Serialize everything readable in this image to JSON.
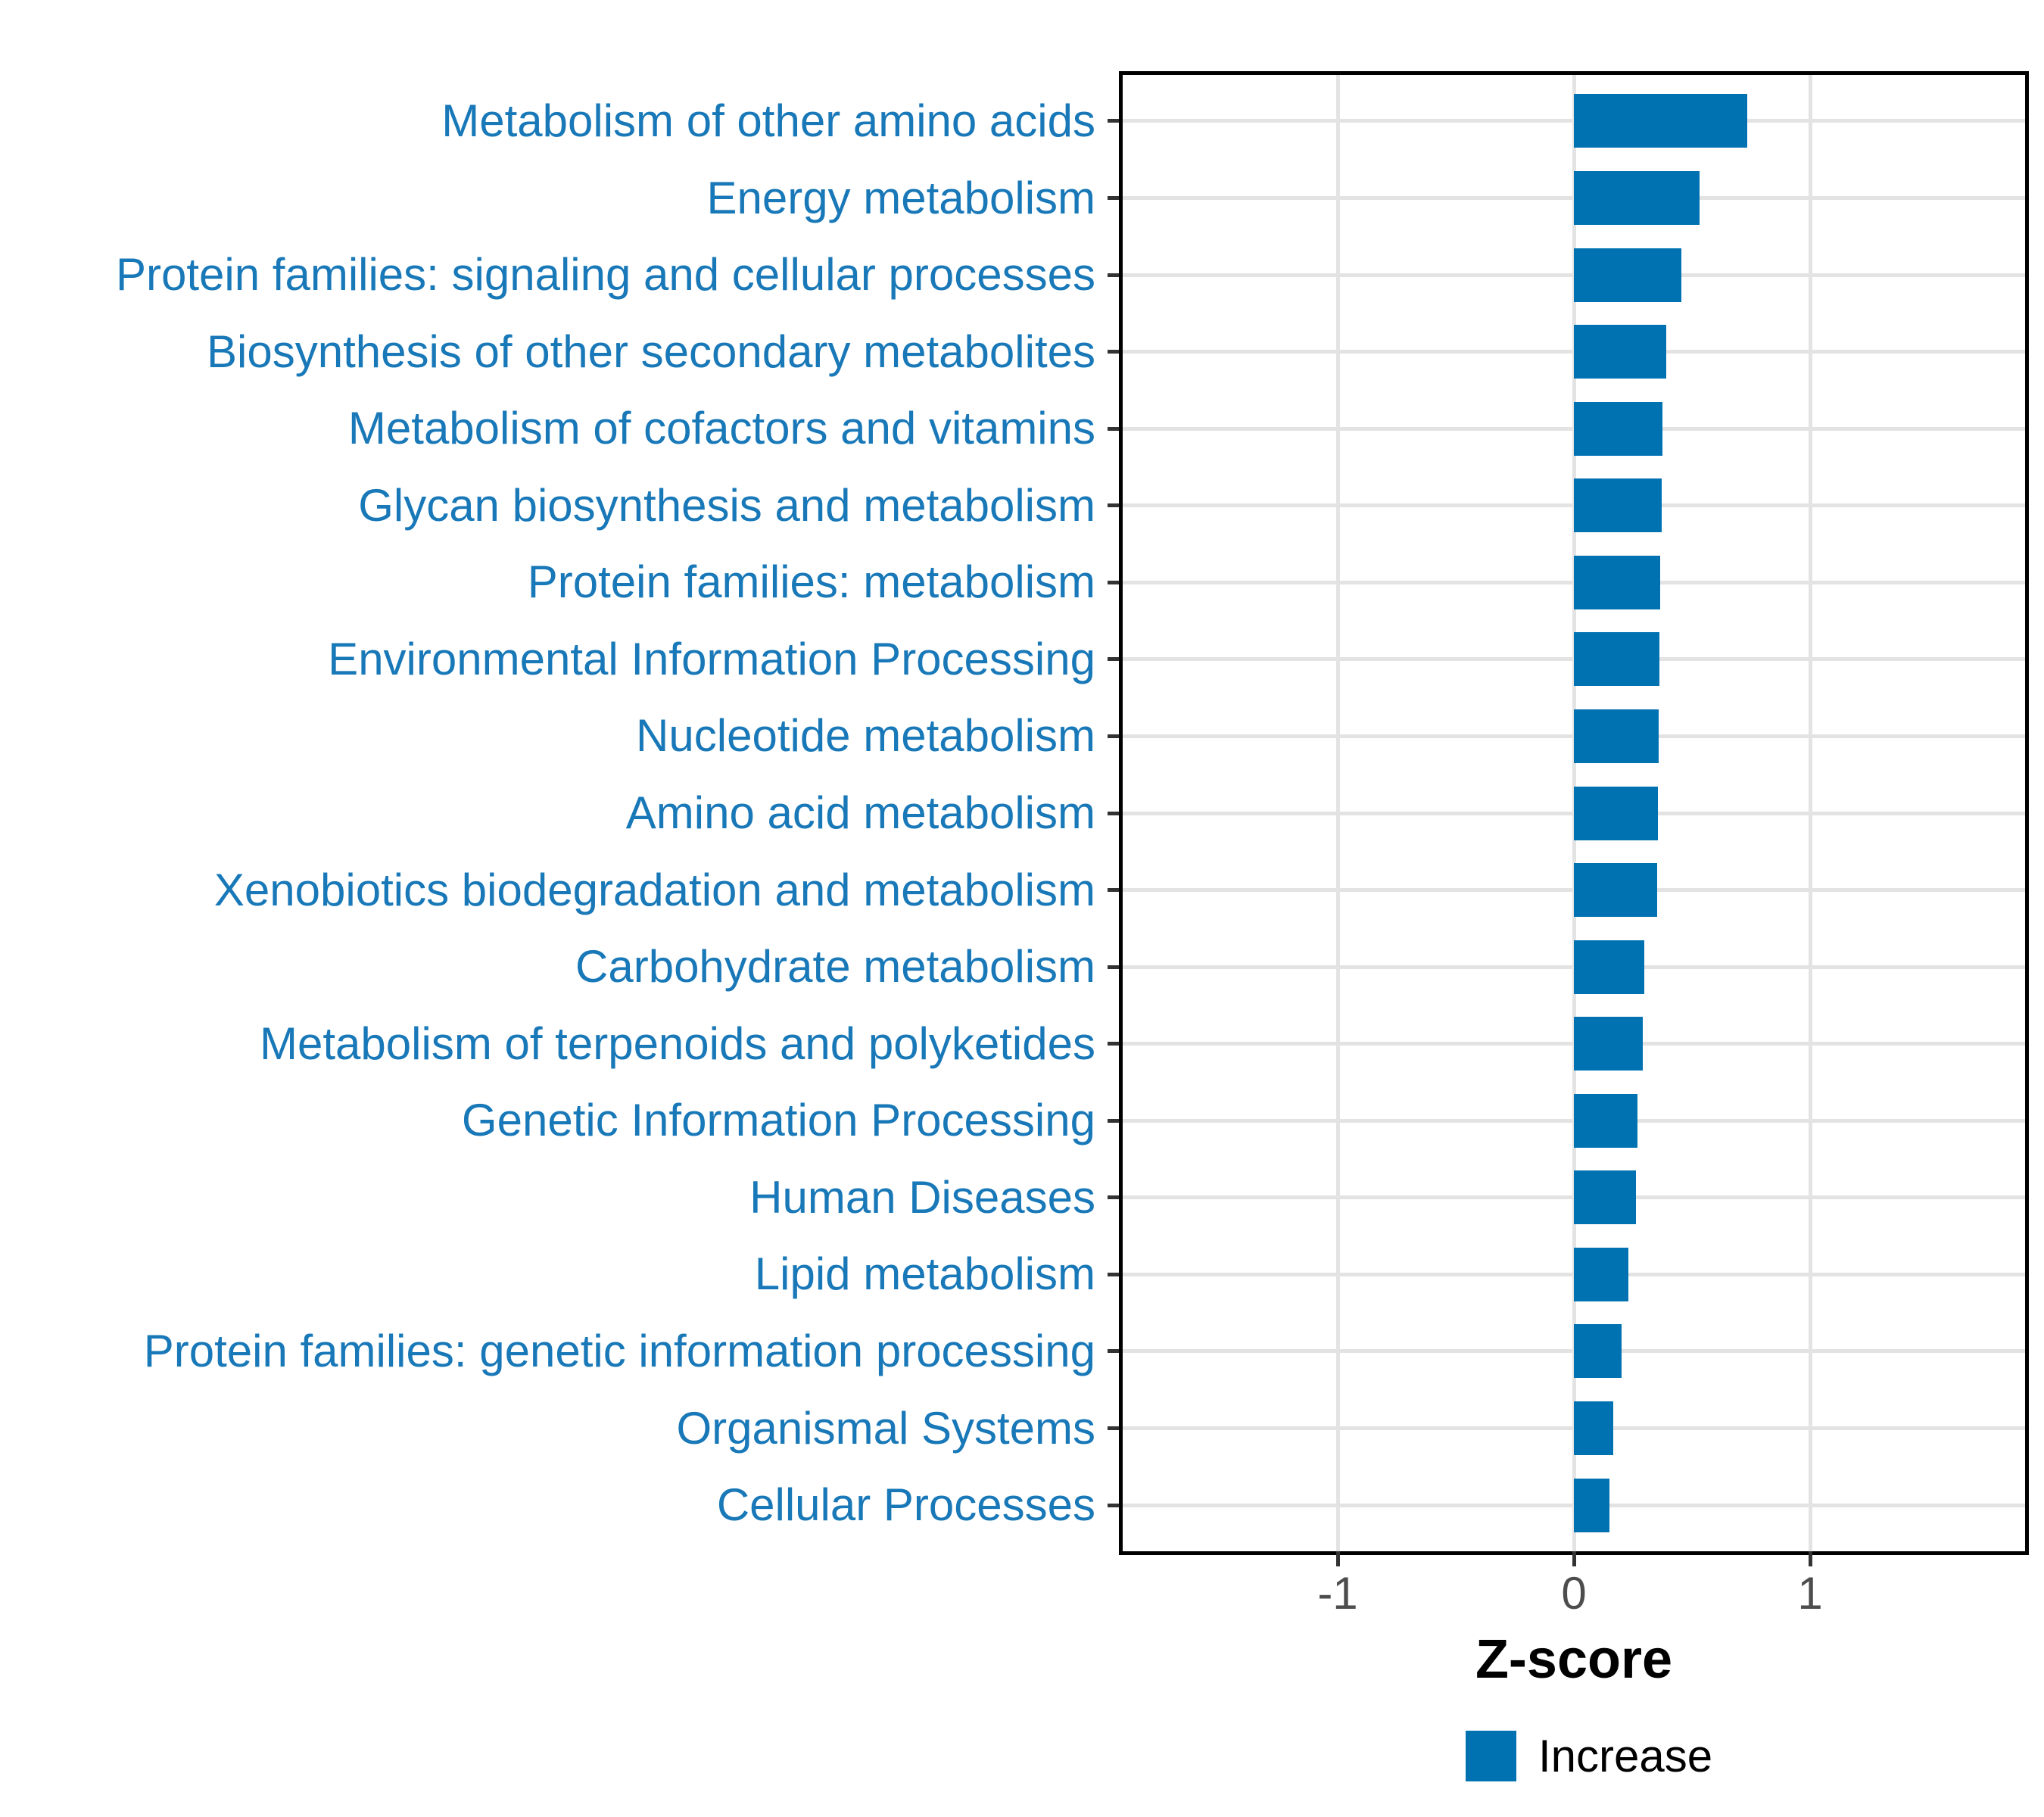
{
  "chart_data": {
    "type": "bar",
    "orientation": "horizontal",
    "title": "",
    "xlabel": "Z-score",
    "ylabel": "",
    "categories": [
      "Metabolism of other amino acids",
      "Energy metabolism",
      "Protein families: signaling and cellular processes",
      "Biosynthesis of other secondary metabolites",
      "Metabolism of cofactors and vitamins",
      "Glycan biosynthesis and metabolism",
      "Protein families: metabolism",
      "Environmental Information Processing",
      "Nucleotide metabolism",
      "Amino acid metabolism",
      "Xenobiotics biodegradation and metabolism",
      "Carbohydrate metabolism",
      "Metabolism of terpenoids and polyketides",
      "Genetic Information Processing",
      "Human Diseases",
      "Lipid metabolism",
      "Protein families: genetic information processing",
      "Organismal Systems",
      "Cellular Processes"
    ],
    "series": [
      {
        "name": "Increase",
        "color": "#0072B2",
        "values": [
          0.735,
          0.532,
          0.455,
          0.391,
          0.375,
          0.37,
          0.366,
          0.361,
          0.358,
          0.354,
          0.352,
          0.298,
          0.29,
          0.27,
          0.262,
          0.23,
          0.201,
          0.167,
          0.151
        ]
      }
    ],
    "x_ticks": [
      -1,
      0,
      1
    ],
    "x_tick_labels": [
      "-1",
      "0",
      "1"
    ],
    "xlim": [
      -1.91,
      1.91
    ],
    "bar_width_fraction": 0.7,
    "grid": "major-only",
    "legend_position": "bottom"
  },
  "colors": {
    "bar": "#0072B2",
    "category_label": "#1878B8",
    "tick_label": "#4D4D4D",
    "axis_title": "#000000",
    "legend_text": "#000000",
    "grid": "#E3E3E3",
    "tick_mark": "#333333",
    "panel_border": "#000000",
    "background": "#FFFFFF"
  }
}
